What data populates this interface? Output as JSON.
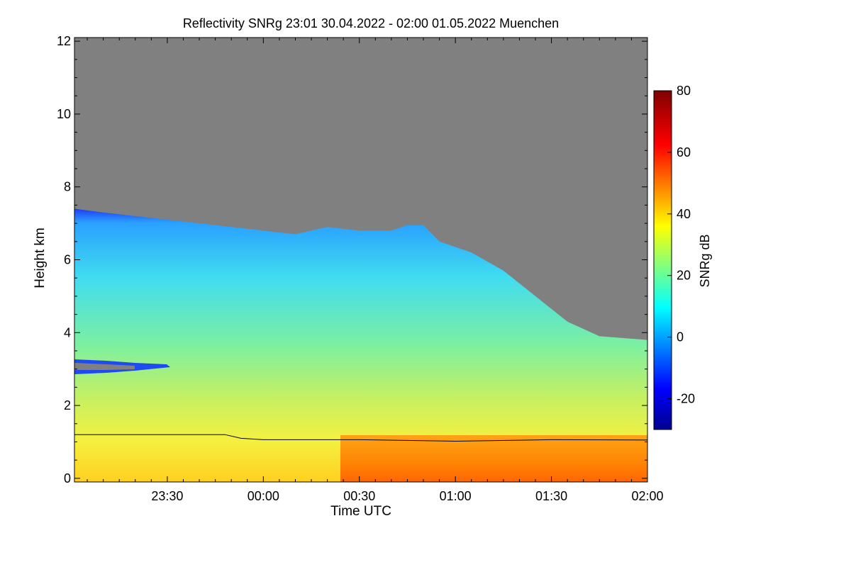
{
  "chart_data": {
    "type": "heatmap",
    "title": "Reflectivity SNRg   23:01 30.04.2022 - 02:00 01.05.2022 Muenchen",
    "xlabel": "Time UTC",
    "ylabel": "Height km",
    "x_range_minutes_since_2300": [
      1,
      180
    ],
    "x_ticks": [
      {
        "label": "23:30",
        "minutes_since_2300": 30
      },
      {
        "label": "00:00",
        "minutes_since_2300": 60
      },
      {
        "label": "00:30",
        "minutes_since_2300": 90
      },
      {
        "label": "01:00",
        "minutes_since_2300": 120
      },
      {
        "label": "01:30",
        "minutes_since_2300": 150
      },
      {
        "label": "02:00",
        "minutes_since_2300": 180
      }
    ],
    "ylim": [
      -0.1,
      12.1
    ],
    "y_ticks": [
      0,
      2,
      4,
      6,
      8,
      10,
      12
    ],
    "colorbar": {
      "label": "SNRg dB",
      "range": [
        -30,
        80
      ],
      "ticks": [
        -20,
        0,
        20,
        40,
        60,
        80
      ]
    },
    "cloud_top_km": [
      {
        "t": 1,
        "h": 7.4
      },
      {
        "t": 10,
        "h": 7.3
      },
      {
        "t": 20,
        "h": 7.2
      },
      {
        "t": 30,
        "h": 7.1
      },
      {
        "t": 40,
        "h": 7.0
      },
      {
        "t": 50,
        "h": 6.9
      },
      {
        "t": 60,
        "h": 6.8
      },
      {
        "t": 70,
        "h": 6.7
      },
      {
        "t": 80,
        "h": 6.9
      },
      {
        "t": 90,
        "h": 6.8
      },
      {
        "t": 100,
        "h": 6.8
      },
      {
        "t": 105,
        "h": 6.95
      },
      {
        "t": 110,
        "h": 6.95
      },
      {
        "t": 115,
        "h": 6.5
      },
      {
        "t": 125,
        "h": 6.2
      },
      {
        "t": 135,
        "h": 5.7
      },
      {
        "t": 145,
        "h": 5.0
      },
      {
        "t": 155,
        "h": 4.3
      },
      {
        "t": 165,
        "h": 3.9
      },
      {
        "t": 180,
        "h": 3.8
      }
    ],
    "boundary_layer_line_km": [
      {
        "t": 1,
        "h": 1.2
      },
      {
        "t": 48,
        "h": 1.2
      },
      {
        "t": 53,
        "h": 1.1
      },
      {
        "t": 60,
        "h": 1.06
      },
      {
        "t": 90,
        "h": 1.06
      },
      {
        "t": 120,
        "h": 1.02
      },
      {
        "t": 150,
        "h": 1.06
      },
      {
        "t": 180,
        "h": 1.05
      }
    ]
  }
}
